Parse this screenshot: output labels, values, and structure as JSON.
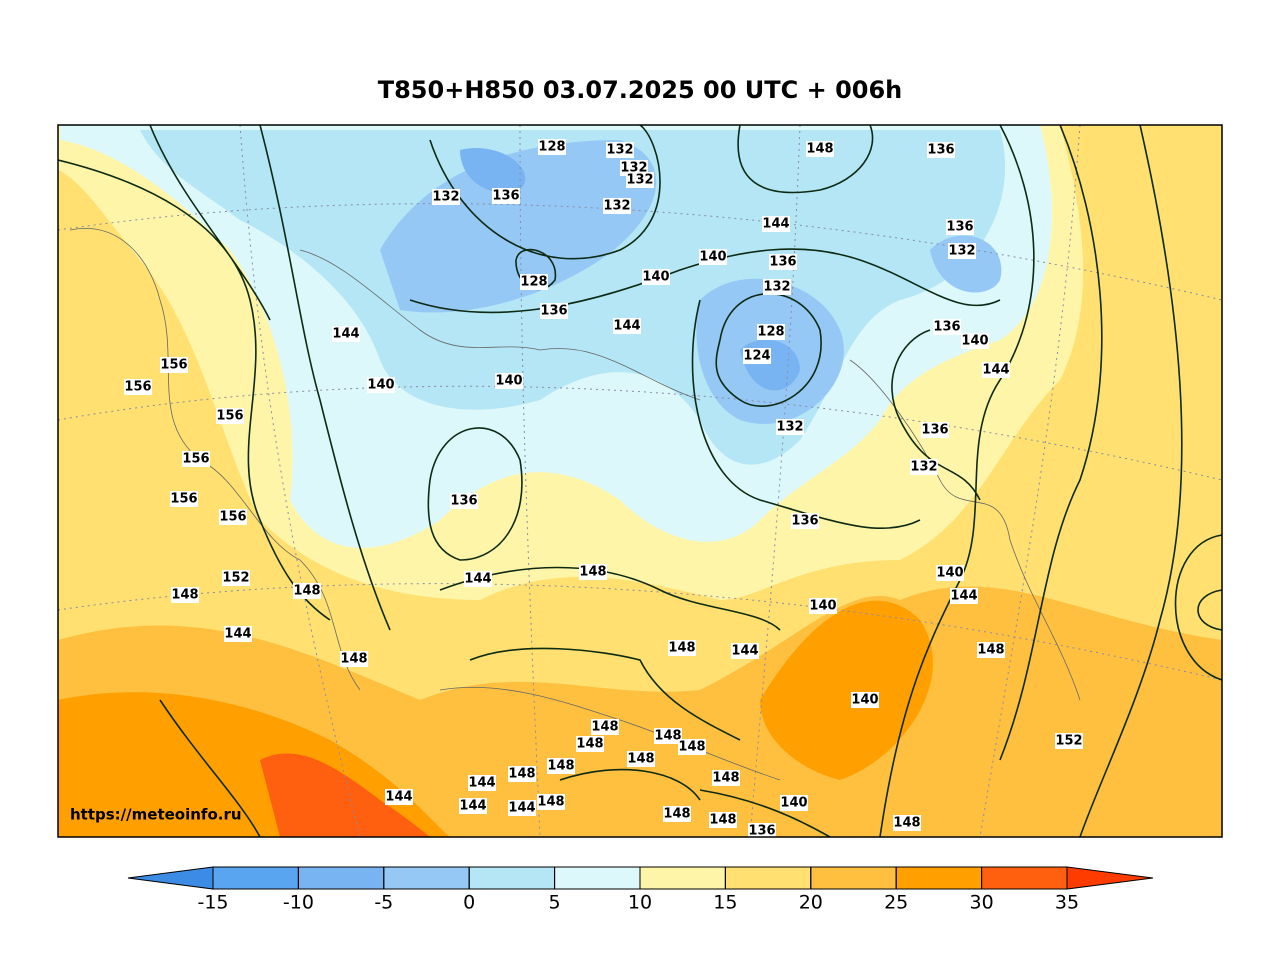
{
  "title": "T850+H850 03.07.2025 00 UTC + 006h",
  "watermark": "https://meteoinfo.ru",
  "colorbar": {
    "ticks": [
      -15,
      -10,
      -5,
      0,
      5,
      10,
      15,
      20,
      25,
      30,
      35
    ],
    "colors": [
      "#5aa5f0",
      "#78b4f2",
      "#96c8f5",
      "#b4e6f5",
      "#dcf8fa",
      "#fff5a8",
      "#ffe070",
      "#ffc040",
      "#ffa000",
      "#ff6010"
    ],
    "under_color": "#3c8ce6",
    "over_color": "#ff3c00"
  },
  "contour_labels": [
    128,
    132,
    132,
    132,
    132,
    132,
    136,
    148,
    136,
    144,
    136,
    132,
    140,
    136,
    128,
    140,
    132,
    136,
    144,
    136,
    128,
    144,
    140,
    124,
    144,
    156,
    140,
    140,
    156,
    156,
    132,
    136,
    156,
    132,
    136,
    156,
    156,
    136,
    144,
    148,
    140,
    152,
    148,
    148,
    140,
    144,
    144,
    148,
    144,
    148,
    148,
    140,
    148,
    148,
    152,
    148,
    148,
    148,
    148,
    148,
    148,
    144,
    144,
    144,
    144,
    148,
    140,
    148,
    148,
    136,
    148
  ]
}
